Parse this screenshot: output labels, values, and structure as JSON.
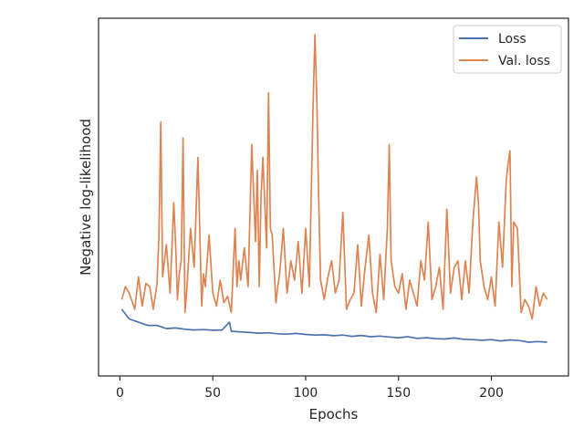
{
  "chart_data": {
    "type": "line",
    "xlabel": "Epochs",
    "ylabel": "Negative log-likelihood",
    "xlim": [
      -11.5,
      241.5
    ],
    "ylim": [
      0,
      100
    ],
    "xticks": [
      0,
      50,
      100,
      150,
      200
    ],
    "grid": false,
    "legend": {
      "position": "top-right"
    },
    "series": [
      {
        "name": "Loss",
        "color": "#4c72b0",
        "x": [
          1,
          5,
          10,
          15,
          20,
          25,
          30,
          35,
          40,
          45,
          50,
          55,
          59,
          60,
          65,
          70,
          75,
          80,
          85,
          90,
          95,
          100,
          105,
          110,
          115,
          120,
          125,
          130,
          135,
          140,
          145,
          150,
          155,
          160,
          165,
          170,
          175,
          180,
          185,
          190,
          195,
          200,
          205,
          210,
          215,
          220,
          225,
          230
        ],
        "y": [
          15,
          12,
          11,
          10,
          10,
          9,
          9.2,
          8.8,
          8.6,
          8.7,
          8.5,
          8.6,
          11,
          8.2,
          8.0,
          7.8,
          7.6,
          7.7,
          7.4,
          7.3,
          7.5,
          7.2,
          7.0,
          7.1,
          6.8,
          7.0,
          6.6,
          6.9,
          6.5,
          6.7,
          6.4,
          6.2,
          6.5,
          6.0,
          6.2,
          5.9,
          5.8,
          6.1,
          5.7,
          5.6,
          5.4,
          5.6,
          5.2,
          5.5,
          5.3,
          4.8,
          5.0,
          4.8
        ]
      },
      {
        "name": "Val. loss",
        "color": "#dd8452",
        "x": [
          1,
          3,
          5,
          8,
          10,
          12,
          14,
          16,
          18,
          20,
          21,
          22,
          23,
          25,
          27,
          29,
          30,
          31,
          32,
          33,
          34,
          35,
          36,
          38,
          40,
          42,
          44,
          45,
          46,
          48,
          50,
          52,
          54,
          56,
          58,
          60,
          62,
          63,
          64,
          65,
          67,
          69,
          71,
          73,
          74,
          75,
          76,
          77,
          79,
          80,
          81,
          82,
          84,
          85,
          86,
          88,
          90,
          92,
          94,
          96,
          98,
          100,
          102,
          104,
          105,
          106,
          107,
          108,
          110,
          112,
          114,
          116,
          118,
          120,
          122,
          124,
          126,
          128,
          130,
          132,
          134,
          136,
          138,
          140,
          142,
          144,
          145,
          146,
          148,
          150,
          152,
          154,
          156,
          158,
          160,
          162,
          164,
          166,
          168,
          170,
          172,
          174,
          176,
          178,
          180,
          182,
          184,
          186,
          188,
          190,
          192,
          193,
          194,
          196,
          198,
          200,
          202,
          204,
          206,
          208,
          209,
          210,
          211,
          212,
          214,
          216,
          218,
          220,
          222,
          224,
          226,
          228,
          230
        ],
        "y": [
          18,
          22,
          20,
          15,
          25,
          16,
          23,
          22,
          15,
          23,
          38,
          73,
          25,
          35,
          20,
          48,
          35,
          18,
          26,
          30,
          68,
          14,
          21,
          40,
          28,
          62,
          16,
          26,
          22,
          38,
          20,
          16,
          24,
          17,
          19,
          14,
          40,
          22,
          30,
          24,
          34,
          22,
          66,
          36,
          58,
          22,
          50,
          62,
          34,
          82,
          40,
          38,
          17,
          22,
          26,
          40,
          20,
          30,
          24,
          36,
          20,
          40,
          22,
          78,
          100,
          80,
          50,
          24,
          18,
          25,
          30,
          20,
          24,
          45,
          15,
          18,
          20,
          35,
          16,
          28,
          38,
          20,
          14,
          32,
          18,
          40,
          66,
          30,
          22,
          20,
          26,
          15,
          24,
          20,
          16,
          30,
          24,
          42,
          18,
          22,
          28,
          15,
          46,
          20,
          28,
          30,
          18,
          30,
          20,
          42,
          56,
          48,
          30,
          22,
          18,
          25,
          16,
          42,
          28,
          55,
          60,
          64,
          22,
          42,
          40,
          14,
          18,
          16,
          12,
          22,
          16,
          20,
          18
        ]
      }
    ]
  }
}
